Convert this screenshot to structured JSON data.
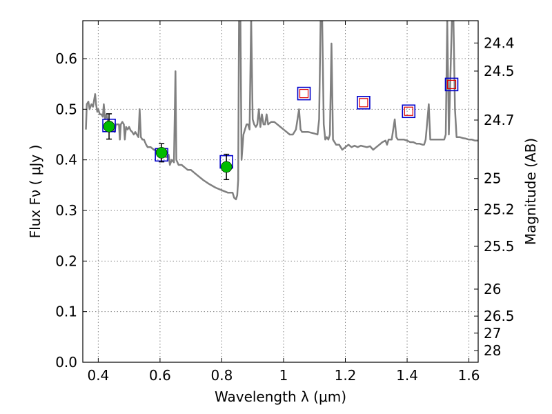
{
  "chart_data": {
    "type": "scatter",
    "xlabel": "Wavelength  λ (μm)",
    "ylabel": "Flux  Fν  ( μJy )",
    "y2label": "Magnitude (AB)",
    "xlim": [
      0.35,
      1.63
    ],
    "ylim": [
      0.0,
      0.675
    ],
    "grid": true,
    "x_ticks": [
      {
        "value": 0.4,
        "label": "0.4"
      },
      {
        "value": 0.6,
        "label": "0.6"
      },
      {
        "value": 0.8,
        "label": "0.8"
      },
      {
        "value": 1.0,
        "label": "1"
      },
      {
        "value": 1.2,
        "label": "1.2"
      },
      {
        "value": 1.4,
        "label": "1.4"
      },
      {
        "value": 1.6,
        "label": "1.6"
      }
    ],
    "y_ticks": [
      {
        "value": 0.0,
        "label": "0.0"
      },
      {
        "value": 0.1,
        "label": "0.1"
      },
      {
        "value": 0.2,
        "label": "0.2"
      },
      {
        "value": 0.3,
        "label": "0.3"
      },
      {
        "value": 0.4,
        "label": "0.4"
      },
      {
        "value": 0.5,
        "label": "0.5"
      },
      {
        "value": 0.6,
        "label": "0.6"
      }
    ],
    "magnitude_ticks": [
      {
        "mag": 24.4,
        "label": "24.4"
      },
      {
        "mag": 24.5,
        "label": "24.5"
      },
      {
        "mag": 24.7,
        "label": "24.7"
      },
      {
        "mag": 25.0,
        "label": "25"
      },
      {
        "mag": 25.2,
        "label": "25.2"
      },
      {
        "mag": 25.5,
        "label": "25.5"
      },
      {
        "mag": 26.0,
        "label": "26"
      },
      {
        "mag": 26.5,
        "label": "26.5"
      },
      {
        "mag": 27.0,
        "label": "27"
      },
      {
        "mag": 28.0,
        "label": "28"
      }
    ],
    "spectrum": {
      "color": "#808080",
      "points": [
        [
          0.36,
          0.46
        ],
        [
          0.363,
          0.51
        ],
        [
          0.368,
          0.515
        ],
        [
          0.372,
          0.5
        ],
        [
          0.378,
          0.51
        ],
        [
          0.383,
          0.505
        ],
        [
          0.387,
          0.52
        ],
        [
          0.39,
          0.53
        ],
        [
          0.393,
          0.51
        ],
        [
          0.397,
          0.495
        ],
        [
          0.4,
          0.5
        ],
        [
          0.405,
          0.49
        ],
        [
          0.41,
          0.49
        ],
        [
          0.415,
          0.485
        ],
        [
          0.418,
          0.51
        ],
        [
          0.422,
          0.48
        ],
        [
          0.427,
          0.49
        ],
        [
          0.433,
          0.47
        ],
        [
          0.438,
          0.465
        ],
        [
          0.442,
          0.465
        ],
        [
          0.447,
          0.46
        ],
        [
          0.453,
          0.455
        ],
        [
          0.457,
          0.47
        ],
        [
          0.462,
          0.47
        ],
        [
          0.467,
          0.47
        ],
        [
          0.47,
          0.44
        ],
        [
          0.473,
          0.47
        ],
        [
          0.478,
          0.475
        ],
        [
          0.483,
          0.47
        ],
        [
          0.486,
          0.44
        ],
        [
          0.49,
          0.465
        ],
        [
          0.495,
          0.46
        ],
        [
          0.5,
          0.465
        ],
        [
          0.505,
          0.458
        ],
        [
          0.51,
          0.455
        ],
        [
          0.515,
          0.45
        ],
        [
          0.52,
          0.455
        ],
        [
          0.525,
          0.45
        ],
        [
          0.53,
          0.445
        ],
        [
          0.534,
          0.5
        ],
        [
          0.538,
          0.445
        ],
        [
          0.543,
          0.44
        ],
        [
          0.548,
          0.44
        ],
        [
          0.555,
          0.43
        ],
        [
          0.56,
          0.425
        ],
        [
          0.57,
          0.425
        ],
        [
          0.58,
          0.42
        ],
        [
          0.59,
          0.418
        ],
        [
          0.6,
          0.415
        ],
        [
          0.61,
          0.41
        ],
        [
          0.62,
          0.405
        ],
        [
          0.628,
          0.41
        ],
        [
          0.632,
          0.39
        ],
        [
          0.638,
          0.4
        ],
        [
          0.645,
          0.395
        ],
        [
          0.65,
          0.575
        ],
        [
          0.653,
          0.4
        ],
        [
          0.66,
          0.39
        ],
        [
          0.67,
          0.39
        ],
        [
          0.68,
          0.385
        ],
        [
          0.69,
          0.38
        ],
        [
          0.7,
          0.38
        ],
        [
          0.72,
          0.37
        ],
        [
          0.74,
          0.36
        ],
        [
          0.76,
          0.352
        ],
        [
          0.78,
          0.345
        ],
        [
          0.8,
          0.34
        ],
        [
          0.82,
          0.335
        ],
        [
          0.835,
          0.335
        ],
        [
          0.84,
          0.325
        ],
        [
          0.846,
          0.322
        ],
        [
          0.85,
          0.33
        ],
        [
          0.853,
          0.36
        ],
        [
          0.856,
          0.7
        ],
        [
          0.86,
          0.7
        ],
        [
          0.864,
          0.4
        ],
        [
          0.87,
          0.45
        ],
        [
          0.88,
          0.47
        ],
        [
          0.885,
          0.47
        ],
        [
          0.89,
          0.46
        ],
        [
          0.895,
          0.68
        ],
        [
          0.9,
          0.48
        ],
        [
          0.905,
          0.47
        ],
        [
          0.91,
          0.465
        ],
        [
          0.915,
          0.47
        ],
        [
          0.92,
          0.5
        ],
        [
          0.925,
          0.465
        ],
        [
          0.93,
          0.49
        ],
        [
          0.935,
          0.47
        ],
        [
          0.94,
          0.47
        ],
        [
          0.945,
          0.49
        ],
        [
          0.95,
          0.47
        ],
        [
          0.96,
          0.475
        ],
        [
          0.97,
          0.475
        ],
        [
          0.98,
          0.47
        ],
        [
          0.99,
          0.465
        ],
        [
          1.0,
          0.46
        ],
        [
          1.01,
          0.455
        ],
        [
          1.02,
          0.45
        ],
        [
          1.03,
          0.45
        ],
        [
          1.04,
          0.46
        ],
        [
          1.05,
          0.5
        ],
        [
          1.055,
          0.46
        ],
        [
          1.06,
          0.455
        ],
        [
          1.08,
          0.455
        ],
        [
          1.1,
          0.452
        ],
        [
          1.11,
          0.45
        ],
        [
          1.115,
          0.48
        ],
        [
          1.12,
          0.68
        ],
        [
          1.125,
          0.68
        ],
        [
          1.13,
          0.47
        ],
        [
          1.135,
          0.44
        ],
        [
          1.14,
          0.445
        ],
        [
          1.145,
          0.44
        ],
        [
          1.15,
          0.45
        ],
        [
          1.155,
          0.63
        ],
        [
          1.16,
          0.44
        ],
        [
          1.17,
          0.43
        ],
        [
          1.18,
          0.43
        ],
        [
          1.19,
          0.42
        ],
        [
          1.2,
          0.425
        ],
        [
          1.21,
          0.43
        ],
        [
          1.22,
          0.425
        ],
        [
          1.23,
          0.428
        ],
        [
          1.24,
          0.425
        ],
        [
          1.25,
          0.428
        ],
        [
          1.27,
          0.425
        ],
        [
          1.28,
          0.427
        ],
        [
          1.29,
          0.42
        ],
        [
          1.3,
          0.425
        ],
        [
          1.31,
          0.43
        ],
        [
          1.32,
          0.435
        ],
        [
          1.33,
          0.438
        ],
        [
          1.335,
          0.43
        ],
        [
          1.34,
          0.44
        ],
        [
          1.35,
          0.44
        ],
        [
          1.36,
          0.48
        ],
        [
          1.365,
          0.445
        ],
        [
          1.37,
          0.44
        ],
        [
          1.38,
          0.44
        ],
        [
          1.39,
          0.44
        ],
        [
          1.4,
          0.438
        ],
        [
          1.41,
          0.435
        ],
        [
          1.42,
          0.435
        ],
        [
          1.43,
          0.432
        ],
        [
          1.44,
          0.432
        ],
        [
          1.45,
          0.43
        ],
        [
          1.455,
          0.43
        ],
        [
          1.46,
          0.44
        ],
        [
          1.47,
          0.51
        ],
        [
          1.475,
          0.44
        ],
        [
          1.48,
          0.44
        ],
        [
          1.49,
          0.44
        ],
        [
          1.5,
          0.44
        ],
        [
          1.51,
          0.44
        ],
        [
          1.52,
          0.44
        ],
        [
          1.525,
          0.45
        ],
        [
          1.53,
          0.675
        ],
        [
          1.535,
          0.45
        ],
        [
          1.54,
          0.56
        ],
        [
          1.545,
          0.675
        ],
        [
          1.55,
          0.675
        ],
        [
          1.555,
          0.5
        ],
        [
          1.56,
          0.445
        ],
        [
          1.57,
          0.445
        ],
        [
          1.58,
          0.443
        ],
        [
          1.59,
          0.442
        ],
        [
          1.6,
          0.44
        ],
        [
          1.61,
          0.44
        ],
        [
          1.62,
          0.438
        ],
        [
          1.63,
          0.438
        ]
      ]
    },
    "model_boxes_blue": [
      {
        "x": 0.435,
        "y": 0.468
      },
      {
        "x": 0.605,
        "y": 0.41
      },
      {
        "x": 0.815,
        "y": 0.396
      },
      {
        "x": 1.066,
        "y": 0.531
      },
      {
        "x": 1.259,
        "y": 0.513
      },
      {
        "x": 1.405,
        "y": 0.496
      },
      {
        "x": 1.544,
        "y": 0.549
      }
    ],
    "upper_squares_red": [
      {
        "x": 1.066,
        "y": 0.531
      },
      {
        "x": 1.259,
        "y": 0.513
      },
      {
        "x": 1.405,
        "y": 0.496
      },
      {
        "x": 1.544,
        "y": 0.549
      }
    ],
    "observed_points": [
      {
        "x": 0.435,
        "y": 0.466,
        "err": 0.025
      },
      {
        "x": 0.605,
        "y": 0.414,
        "err": 0.018
      },
      {
        "x": 0.815,
        "y": 0.386,
        "err": 0.025
      }
    ],
    "colors": {
      "spectrum": "#808080",
      "model_box": "#0000cc",
      "upper_square": "#dd0000",
      "observed": "#00bb00",
      "errorbar": "#000000",
      "grid": "#808080"
    }
  }
}
